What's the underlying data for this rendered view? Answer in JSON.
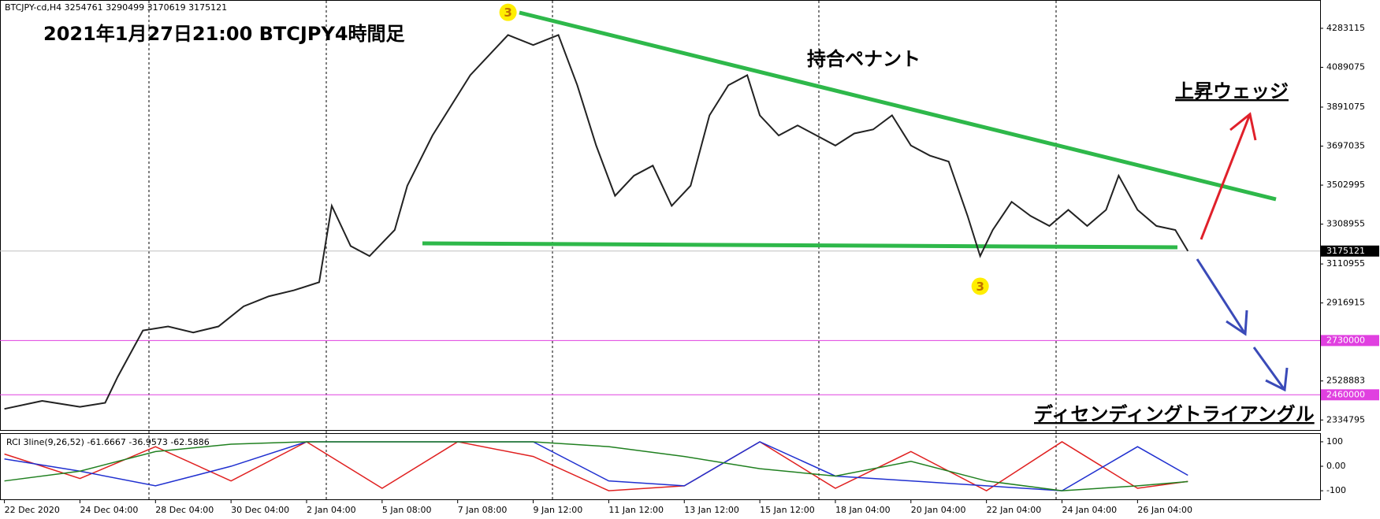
{
  "chart_data": [
    {
      "type": "line",
      "header": "BTCJPY-cd,H4  3254761 3290499 3170619 3175121",
      "title": "2021年1月27日21:00  BTCJPY4時間足",
      "annotations": [
        {
          "text": "持合ペナント",
          "color": "#2eaa4a"
        },
        {
          "text": "上昇ウェッジ",
          "color": "#e0202a"
        },
        {
          "text": "ディセンディングトライアングル",
          "color": "#3a4ab8"
        }
      ],
      "x": [
        0,
        6,
        12,
        16,
        18,
        22,
        26,
        30,
        34,
        38,
        42,
        46,
        50,
        52,
        55,
        58,
        62,
        64,
        68,
        72,
        74,
        77,
        80,
        84,
        88,
        91,
        94,
        97,
        100,
        103,
        106,
        109,
        112,
        115,
        118,
        120,
        123,
        126,
        129,
        132,
        135,
        138,
        141,
        144,
        147,
        150,
        153,
        155,
        157,
        160,
        163,
        166,
        169,
        172,
        175,
        177,
        180,
        183,
        186,
        188
      ],
      "series": [
        {
          "color": "#222222",
          "values": [
            2390000,
            2430000,
            2400000,
            2420000,
            2550000,
            2780000,
            2800000,
            2770000,
            2800000,
            2900000,
            2950000,
            2980000,
            3020000,
            3400000,
            3200000,
            3150000,
            3280000,
            3500000,
            3750000,
            3950000,
            4050000,
            4150000,
            4250000,
            4200000,
            4250000,
            4000000,
            3700000,
            3450000,
            3550000,
            3600000,
            3400000,
            3500000,
            3850000,
            4000000,
            4050000,
            3850000,
            3750000,
            3800000,
            3750000,
            3700000,
            3760000,
            3780000,
            3850000,
            3700000,
            3650000,
            3620000,
            3350000,
            3150000,
            3280000,
            3420000,
            3350000,
            3300000,
            3380000,
            3300000,
            3380000,
            3550000,
            3380000,
            3300000,
            3280000,
            3175121
          ]
        }
      ],
      "markers": [
        {
          "x": 80,
          "y": 4362500,
          "label": "3"
        },
        {
          "x": 155,
          "y": 3000000,
          "label": "3"
        }
      ],
      "hlines": [
        {
          "value": 2730000,
          "color": "#e040e0"
        },
        {
          "value": 2460000,
          "color": "#e040e0"
        },
        {
          "value": 3175121,
          "color": "#000000"
        }
      ],
      "xlim": [
        0,
        209
      ],
      "xticks": [
        {
          "value": 0,
          "label": "22 Dec 2020"
        },
        {
          "value": 12,
          "label": "24 Dec 04:00"
        },
        {
          "value": 24,
          "label": "28 Dec 04:00"
        },
        {
          "value": 36,
          "label": "30 Dec 04:00"
        },
        {
          "value": 48,
          "label": "2 Jan 04:00"
        },
        {
          "value": 60,
          "label": "5 Jan 08:00"
        },
        {
          "value": 72,
          "label": "7 Jan 08:00"
        },
        {
          "value": 84,
          "label": "9 Jan 12:00"
        },
        {
          "value": 96,
          "label": "11 Jan 12:00"
        },
        {
          "value": 108,
          "label": "13 Jan 12:00"
        },
        {
          "value": 120,
          "label": "15 Jan 12:00"
        },
        {
          "value": 132,
          "label": "18 Jan 04:00"
        },
        {
          "value": 144,
          "label": "20 Jan 04:00"
        },
        {
          "value": 156,
          "label": "22 Jan 04:00"
        },
        {
          "value": 168,
          "label": "24 Jan 04:00"
        },
        {
          "value": 180,
          "label": "26 Jan 04:00"
        }
      ],
      "ylim": [
        2281000,
        4420000
      ],
      "yticks": [
        4283115,
        4089075,
        3891075,
        3697035,
        3502995,
        3308955,
        3110955,
        2916915,
        2528883,
        2334795
      ]
    },
    {
      "type": "line",
      "header": "RCI 3line(9,26,52) -61.6667 -36.9573 -62.5886",
      "x": [
        0,
        12,
        24,
        36,
        48,
        60,
        72,
        84,
        96,
        108,
        120,
        132,
        144,
        156,
        168,
        180,
        188
      ],
      "series": [
        {
          "color": "#e02020",
          "values": [
            50,
            -50,
            80,
            -60,
            100,
            -90,
            100,
            40,
            -100,
            -80,
            100,
            -90,
            60,
            -100,
            100,
            -90,
            -61.6667
          ]
        },
        {
          "color": "#2030d0",
          "values": [
            30,
            -20,
            -80,
            0,
            100,
            100,
            100,
            100,
            -60,
            -80,
            100,
            -40,
            -60,
            -80,
            -100,
            80,
            -36.9573
          ]
        },
        {
          "color": "#208020",
          "values": [
            -60,
            -20,
            60,
            90,
            100,
            100,
            100,
            100,
            80,
            40,
            -10,
            -40,
            20,
            -60,
            -100,
            -80,
            -62.5886
          ]
        }
      ],
      "xlim": [
        0,
        209
      ],
      "ylim": [
        -135,
        132
      ],
      "yticks": [
        100,
        {
          "value": 0,
          "label": "0.00"
        },
        -100
      ]
    }
  ]
}
